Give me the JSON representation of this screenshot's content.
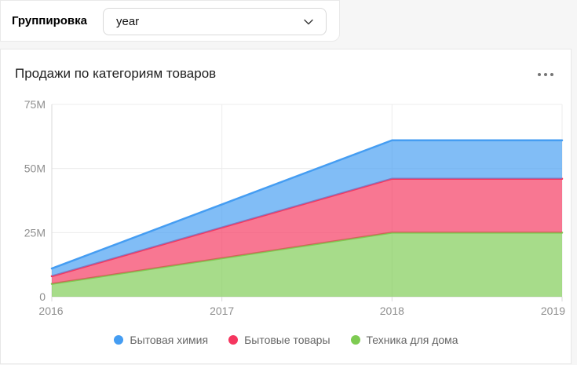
{
  "header": {
    "grouping_label": "Группировка",
    "grouping_value": "year"
  },
  "card": {
    "title": "Продажи по категориям товаров"
  },
  "chart_data": {
    "type": "area",
    "stacked": true,
    "title": "Продажи по категориям товаров",
    "categories": [
      "2016",
      "2017",
      "2018",
      "2019"
    ],
    "series": [
      {
        "name": "Бытовая химия",
        "color": "#459df2",
        "values": [
          3000000,
          9000000,
          15000000,
          15000000
        ]
      },
      {
        "name": "Бытовые товары",
        "color": "#f5365f",
        "values": [
          3000000,
          12000000,
          21000000,
          21000000
        ]
      },
      {
        "name": "Техника для дома",
        "color": "#7ecb52",
        "values": [
          5000000,
          15000000,
          25000000,
          25000000
        ]
      }
    ],
    "stack_order_bottom_to_top": [
      "Техника для дома",
      "Бытовые товары",
      "Бытовая химия"
    ],
    "stacked_totals": [
      11000000,
      36000000,
      61000000,
      61000000
    ],
    "unit": "M",
    "ylim": [
      0,
      75000000
    ],
    "yticks": [
      {
        "value": 0,
        "label": "0"
      },
      {
        "value": 25000000,
        "label": "25M"
      },
      {
        "value": 50000000,
        "label": "50M"
      },
      {
        "value": 75000000,
        "label": "75M"
      }
    ],
    "xlabel": "",
    "ylabel": "",
    "grid": true,
    "legend_position": "bottom",
    "axis_label_color": "#8f8f8f",
    "gridline_color": "#ececec",
    "axis_line_color": "#d9d9d9",
    "fill_opacity": 0.68
  }
}
